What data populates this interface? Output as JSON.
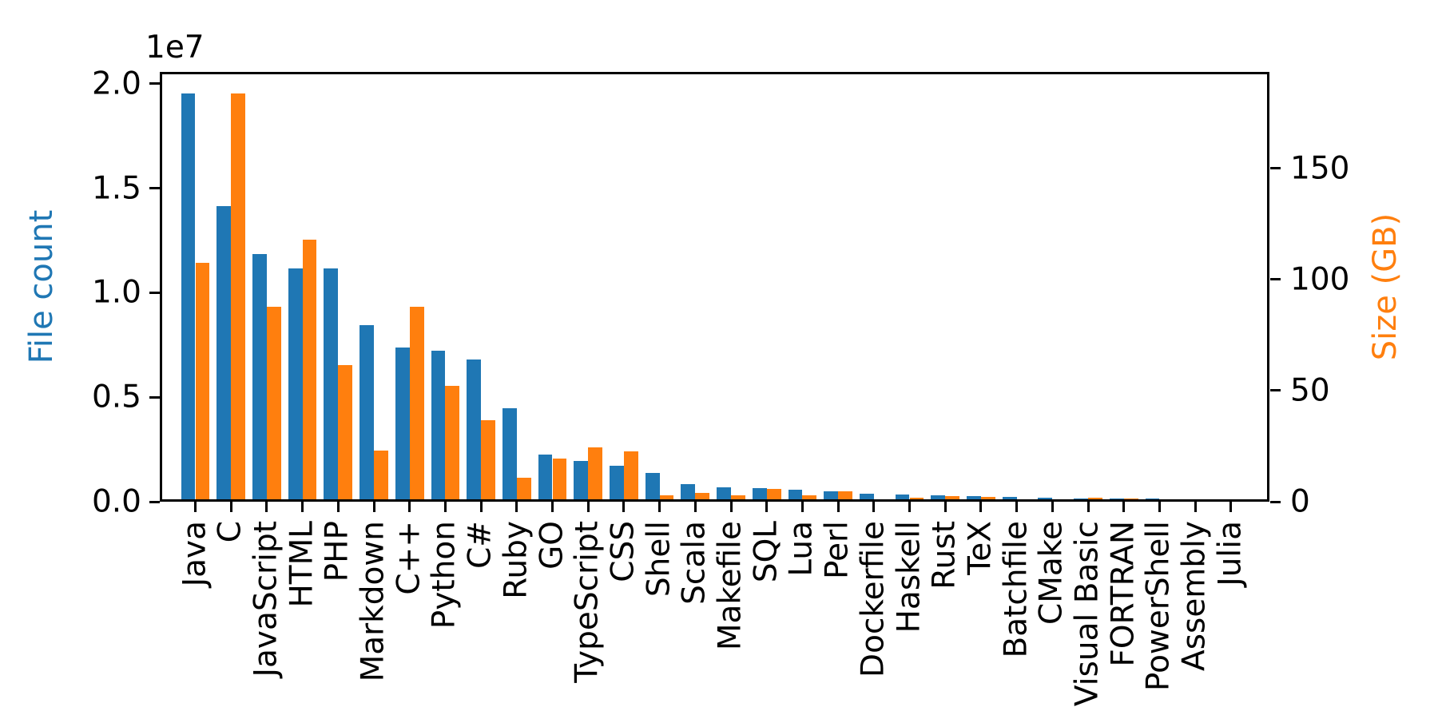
{
  "chart_data": {
    "type": "bar",
    "title": "",
    "categories": [
      "Java",
      "C",
      "JavaScript",
      "HTML",
      "PHP",
      "Markdown",
      "C++",
      "Python",
      "C#",
      "Ruby",
      "GO",
      "TypeScript",
      "CSS",
      "Shell",
      "Scala",
      "Makefile",
      "SQL",
      "Lua",
      "Perl",
      "Dockerfile",
      "Haskell",
      "Rust",
      "TeX",
      "Batchfile",
      "CMake",
      "Visual Basic",
      "FORTRAN",
      "PowerShell",
      "Assembly",
      "Julia"
    ],
    "series": [
      {
        "name": "File count",
        "axis": "left",
        "color": "#1f77b4",
        "values": [
          19548190,
          14143113,
          11839883,
          11178557,
          11177610,
          8464626,
          7380520,
          7226626,
          6811652,
          4473331,
          2265436,
          1940406,
          1734406,
          1385648,
          835755,
          679430,
          656671,
          578554,
          497949,
          366505,
          340623,
          322431,
          251015,
          236945,
          175282,
          155652,
          142038,
          136846,
          82905,
          58317
        ]
      },
      {
        "name": "Size (GB)",
        "axis": "right",
        "color": "#ff7f0e",
        "values": [
          107.7,
          183.83,
          87.82,
          118.12,
          61.41,
          23.09,
          87.73,
          52.03,
          36.83,
          10.95,
          19.28,
          24.59,
          22.67,
          3.01,
          3.87,
          2.92,
          5.67,
          2.81,
          4.7,
          0.71,
          1.85,
          2.68,
          2.15,
          0.7,
          0.54,
          1.91,
          1.62,
          0.69,
          0.78,
          0.29
        ]
      }
    ],
    "left_axis": {
      "label": "File count",
      "color": "#1f77b4",
      "offset_text": "1e7",
      "max": 20570000,
      "tick_labels": [
        "0.0",
        "0.5",
        "1.0",
        "1.5",
        "2.0"
      ],
      "tick_values": [
        0,
        5000000,
        10000000,
        15000000,
        20000000
      ]
    },
    "right_axis": {
      "label": "Size (GB)",
      "color": "#ff7f0e",
      "max": 193.5,
      "tick_labels": [
        "0",
        "50",
        "100",
        "150"
      ],
      "tick_values": [
        0,
        50,
        100,
        150
      ]
    },
    "x_axis": {
      "tick_label_rotation": 90
    },
    "grid": false,
    "legend": "none",
    "background": "#ffffff",
    "bar_colors": {
      "file_count": "#1f77b4",
      "size_gb": "#ff7f0e"
    }
  }
}
